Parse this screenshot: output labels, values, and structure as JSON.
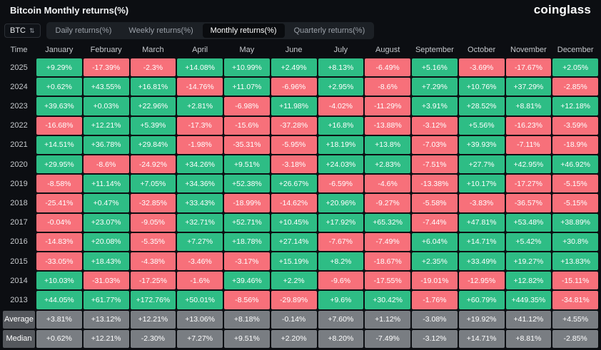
{
  "header": {
    "title": "Bitcoin Monthly returns(%)",
    "logo": "coinglass"
  },
  "toolbar": {
    "symbol": "BTC",
    "updown_icon": "⇅",
    "tabs": [
      {
        "label": "Daily returns(%)",
        "active": false
      },
      {
        "label": "Weekly returns(%)",
        "active": false
      },
      {
        "label": "Monthly returns(%)",
        "active": true
      },
      {
        "label": "Quarterly returns(%)",
        "active": false
      }
    ]
  },
  "colors": {
    "bg": "#0c0e12",
    "positive": "#2EBD85",
    "negative": "#F7707A",
    "neutral_cell": "#797D82",
    "neutral_label": "#55585D"
  },
  "chart_data": {
    "type": "heatmap",
    "columns": [
      "Time",
      "January",
      "February",
      "March",
      "April",
      "May",
      "June",
      "July",
      "August",
      "September",
      "October",
      "November",
      "December"
    ],
    "rows": [
      {
        "label": "2025",
        "neutral": false,
        "values": [
          "+9.29%",
          "-17.39%",
          "-2.3%",
          "+14.08%",
          "+10.99%",
          "+2.49%",
          "+8.13%",
          "-6.49%",
          "+5.16%",
          "-3.69%",
          "-17.67%",
          "+2.05%"
        ]
      },
      {
        "label": "2024",
        "neutral": false,
        "values": [
          "+0.62%",
          "+43.55%",
          "+16.81%",
          "-14.76%",
          "+11.07%",
          "-6.96%",
          "+2.95%",
          "-8.6%",
          "+7.29%",
          "+10.76%",
          "+37.29%",
          "-2.85%"
        ]
      },
      {
        "label": "2023",
        "neutral": false,
        "values": [
          "+39.63%",
          "+0.03%",
          "+22.96%",
          "+2.81%",
          "-6.98%",
          "+11.98%",
          "-4.02%",
          "-11.29%",
          "+3.91%",
          "+28.52%",
          "+8.81%",
          "+12.18%"
        ]
      },
      {
        "label": "2022",
        "neutral": false,
        "values": [
          "-16.68%",
          "+12.21%",
          "+5.39%",
          "-17.3%",
          "-15.6%",
          "-37.28%",
          "+16.8%",
          "-13.88%",
          "-3.12%",
          "+5.56%",
          "-16.23%",
          "-3.59%"
        ]
      },
      {
        "label": "2021",
        "neutral": false,
        "values": [
          "+14.51%",
          "+36.78%",
          "+29.84%",
          "-1.98%",
          "-35.31%",
          "-5.95%",
          "+18.19%",
          "+13.8%",
          "-7.03%",
          "+39.93%",
          "-7.11%",
          "-18.9%"
        ]
      },
      {
        "label": "2020",
        "neutral": false,
        "values": [
          "+29.95%",
          "-8.6%",
          "-24.92%",
          "+34.26%",
          "+9.51%",
          "-3.18%",
          "+24.03%",
          "+2.83%",
          "-7.51%",
          "+27.7%",
          "+42.95%",
          "+46.92%"
        ]
      },
      {
        "label": "2019",
        "neutral": false,
        "values": [
          "-8.58%",
          "+11.14%",
          "+7.05%",
          "+34.36%",
          "+52.38%",
          "+26.67%",
          "-6.59%",
          "-4.6%",
          "-13.38%",
          "+10.17%",
          "-17.27%",
          "-5.15%"
        ]
      },
      {
        "label": "2018",
        "neutral": false,
        "values": [
          "-25.41%",
          "+0.47%",
          "-32.85%",
          "+33.43%",
          "-18.99%",
          "-14.62%",
          "+20.96%",
          "-9.27%",
          "-5.58%",
          "-3.83%",
          "-36.57%",
          "-5.15%"
        ]
      },
      {
        "label": "2017",
        "neutral": false,
        "values": [
          "-0.04%",
          "+23.07%",
          "-9.05%",
          "+32.71%",
          "+52.71%",
          "+10.45%",
          "+17.92%",
          "+65.32%",
          "-7.44%",
          "+47.81%",
          "+53.48%",
          "+38.89%"
        ]
      },
      {
        "label": "2016",
        "neutral": false,
        "values": [
          "-14.83%",
          "+20.08%",
          "-5.35%",
          "+7.27%",
          "+18.78%",
          "+27.14%",
          "-7.67%",
          "-7.49%",
          "+6.04%",
          "+14.71%",
          "+5.42%",
          "+30.8%"
        ]
      },
      {
        "label": "2015",
        "neutral": false,
        "values": [
          "-33.05%",
          "+18.43%",
          "-4.38%",
          "-3.46%",
          "-3.17%",
          "+15.19%",
          "+8.2%",
          "-18.67%",
          "+2.35%",
          "+33.49%",
          "+19.27%",
          "+13.83%"
        ]
      },
      {
        "label": "2014",
        "neutral": false,
        "values": [
          "+10.03%",
          "-31.03%",
          "-17.25%",
          "-1.6%",
          "+39.46%",
          "+2.2%",
          "-9.6%",
          "-17.55%",
          "-19.01%",
          "-12.95%",
          "+12.82%",
          "-15.11%"
        ]
      },
      {
        "label": "2013",
        "neutral": false,
        "values": [
          "+44.05%",
          "+61.77%",
          "+172.76%",
          "+50.01%",
          "-8.56%",
          "-29.89%",
          "+9.6%",
          "+30.42%",
          "-1.76%",
          "+60.79%",
          "+449.35%",
          "-34.81%"
        ]
      },
      {
        "label": "Average",
        "neutral": true,
        "values": [
          "+3.81%",
          "+13.12%",
          "+12.21%",
          "+13.06%",
          "+8.18%",
          "-0.14%",
          "+7.60%",
          "+1.12%",
          "-3.08%",
          "+19.92%",
          "+41.12%",
          "+4.55%"
        ]
      },
      {
        "label": "Median",
        "neutral": true,
        "values": [
          "+0.62%",
          "+12.21%",
          "-2.30%",
          "+7.27%",
          "+9.51%",
          "+2.20%",
          "+8.20%",
          "-7.49%",
          "-3.12%",
          "+14.71%",
          "+8.81%",
          "-2.85%"
        ]
      }
    ]
  }
}
